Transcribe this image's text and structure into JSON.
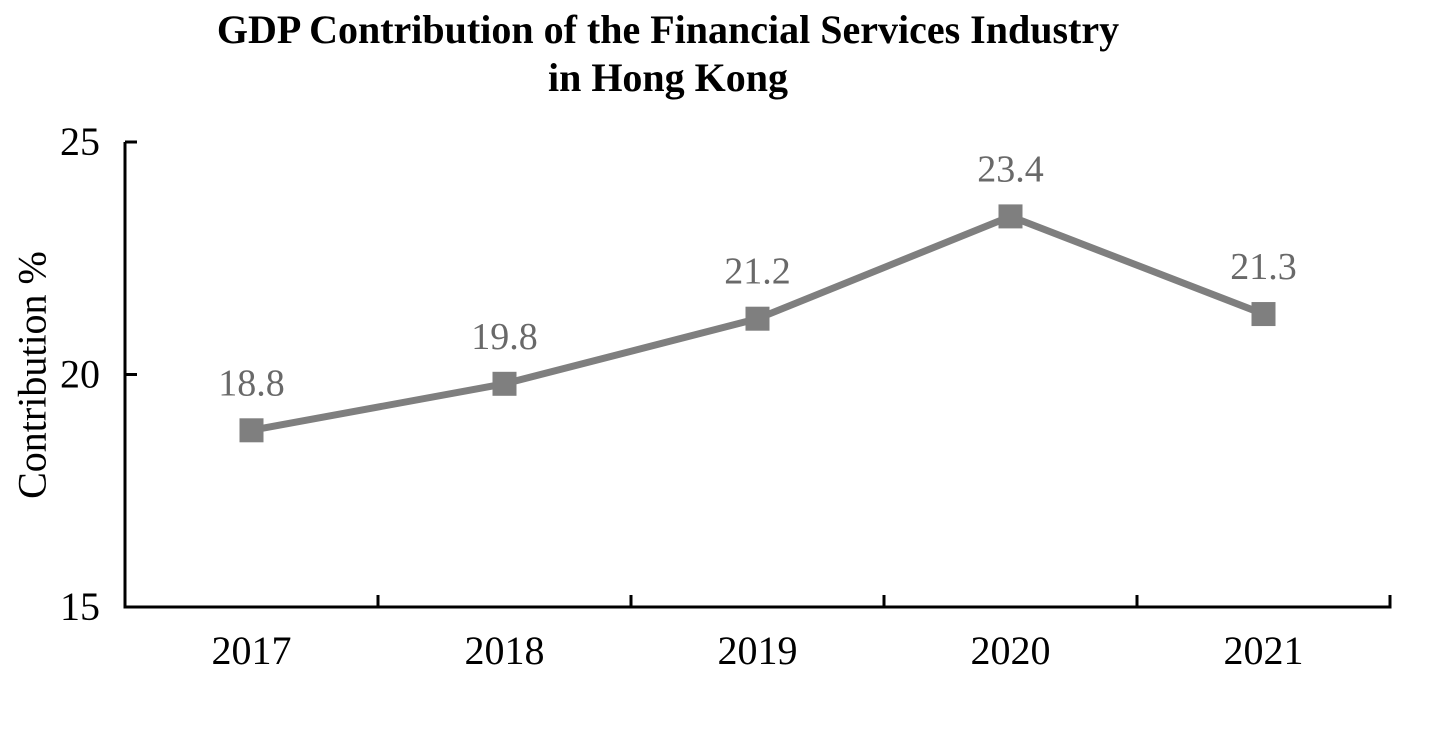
{
  "chart_data": {
    "type": "line",
    "title": "GDP Contribution of the Financial Services Industry in Hong Kong",
    "title_lines": [
      "GDP Contribution of the Financial Services Industry",
      "in Hong Kong"
    ],
    "xlabel": "",
    "ylabel": "Contribution %",
    "categories": [
      "2017",
      "2018",
      "2019",
      "2020",
      "2021"
    ],
    "series": [
      {
        "name": "Contribution %",
        "values": [
          18.8,
          19.8,
          21.2,
          23.4,
          21.3
        ]
      }
    ],
    "data_labels": [
      "18.8",
      "19.8",
      "21.2",
      "23.4",
      "21.3"
    ],
    "ylim": [
      15,
      25
    ],
    "yticks": [
      15,
      20,
      25
    ],
    "ytick_labels": [
      "15",
      "20",
      "25"
    ],
    "grid": false,
    "legend_position": "none",
    "marker": "square",
    "colors": {
      "line": "#7f7f7f",
      "marker": "#7f7f7f",
      "data_label": "#696969",
      "axis": "#000000",
      "tick_label": "#000000",
      "title": "#000000",
      "background": "#ffffff"
    }
  }
}
